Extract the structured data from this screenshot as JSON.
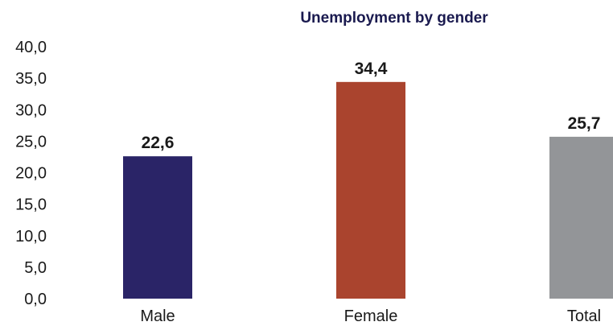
{
  "chart_data": {
    "type": "bar",
    "title": "Unemployment by gender",
    "categories": [
      "Male",
      "Female",
      "Total"
    ],
    "values": [
      22.6,
      34.4,
      25.7
    ],
    "value_labels": [
      "22,6",
      "34,4",
      "25,7"
    ],
    "colors": [
      "#2a2467",
      "#aa442e",
      "#939598"
    ],
    "yticks": [
      "0,0",
      "5,0",
      "10,0",
      "15,0",
      "20,0",
      "25,0",
      "30,0",
      "35,0",
      "40,0"
    ],
    "ylim": [
      0,
      40
    ],
    "grid": false,
    "legend": "none"
  }
}
